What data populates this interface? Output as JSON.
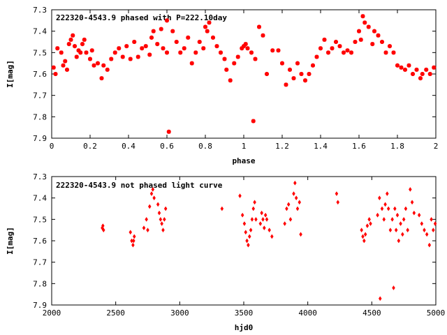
{
  "chart_data": [
    {
      "type": "scatter",
      "title": "222320-4543.9 phased with P=222.10day",
      "xlabel": "phase",
      "ylabel": "I[mag]",
      "xlim": [
        0,
        2
      ],
      "ylim": [
        7.9,
        7.3
      ],
      "y_inverted": true,
      "xticks": [
        0,
        0.2,
        0.4,
        0.6,
        0.8,
        1,
        1.2,
        1.4,
        1.6,
        1.8,
        2
      ],
      "xtick_labels": [
        "0",
        "0.2",
        "0.4",
        "0.6",
        "0.8",
        "1",
        "1.2",
        "1.4",
        "1.6",
        "1.8",
        "2"
      ],
      "yticks": [
        7.3,
        7.4,
        7.5,
        7.6,
        7.7,
        7.8,
        7.9
      ],
      "ytick_labels": [
        "7.3",
        "7.4",
        "7.5",
        "7.6",
        "7.7",
        "7.8",
        "7.9"
      ],
      "grid": false,
      "marker": "star",
      "color": "#ff0000",
      "series": [
        {
          "points": [
            [
              0.01,
              7.57
            ],
            [
              0.02,
              7.6
            ],
            [
              0.03,
              7.48
            ],
            [
              0.05,
              7.5
            ],
            [
              0.06,
              7.56
            ],
            [
              0.07,
              7.54
            ],
            [
              0.08,
              7.58
            ],
            [
              0.09,
              7.46
            ],
            [
              0.1,
              7.44
            ],
            [
              0.11,
              7.42
            ],
            [
              0.12,
              7.47
            ],
            [
              0.13,
              7.52
            ],
            [
              0.14,
              7.49
            ],
            [
              0.15,
              7.5
            ],
            [
              0.16,
              7.46
            ],
            [
              0.17,
              7.44
            ],
            [
              0.18,
              7.5
            ],
            [
              0.2,
              7.53
            ],
            [
              0.21,
              7.49
            ],
            [
              0.22,
              7.56
            ],
            [
              0.24,
              7.55
            ],
            [
              0.26,
              7.62
            ],
            [
              0.27,
              7.56
            ],
            [
              0.29,
              7.58
            ],
            [
              0.31,
              7.53
            ],
            [
              0.33,
              7.5
            ],
            [
              0.35,
              7.48
            ],
            [
              0.37,
              7.52
            ],
            [
              0.39,
              7.47
            ],
            [
              0.41,
              7.53
            ],
            [
              0.43,
              7.45
            ],
            [
              0.45,
              7.52
            ],
            [
              0.47,
              7.48
            ],
            [
              0.49,
              7.47
            ],
            [
              0.51,
              7.51
            ],
            [
              0.52,
              7.43
            ],
            [
              0.53,
              7.4
            ],
            [
              0.55,
              7.46
            ],
            [
              0.57,
              7.39
            ],
            [
              0.58,
              7.48
            ],
            [
              0.6,
              7.35
            ],
            [
              0.6,
              7.5
            ],
            [
              0.61,
              7.87
            ],
            [
              0.63,
              7.4
            ],
            [
              0.65,
              7.45
            ],
            [
              0.67,
              7.5
            ],
            [
              0.69,
              7.48
            ],
            [
              0.71,
              7.43
            ],
            [
              0.73,
              7.55
            ],
            [
              0.75,
              7.5
            ],
            [
              0.77,
              7.45
            ],
            [
              0.79,
              7.48
            ],
            [
              0.8,
              7.38
            ],
            [
              0.81,
              7.4
            ],
            [
              0.82,
              7.36
            ],
            [
              0.84,
              7.43
            ],
            [
              0.86,
              7.47
            ],
            [
              0.88,
              7.5
            ],
            [
              0.9,
              7.53
            ],
            [
              0.91,
              7.58
            ],
            [
              0.93,
              7.63
            ],
            [
              0.95,
              7.55
            ],
            [
              0.97,
              7.52
            ],
            [
              0.99,
              7.48
            ],
            [
              1.0,
              7.47
            ],
            [
              1.01,
              7.46
            ],
            [
              1.02,
              7.48
            ],
            [
              1.04,
              7.5
            ],
            [
              1.05,
              7.82
            ],
            [
              1.06,
              7.53
            ],
            [
              1.08,
              7.38
            ],
            [
              1.1,
              7.42
            ],
            [
              1.12,
              7.6
            ],
            [
              1.15,
              7.49
            ],
            [
              1.18,
              7.49
            ],
            [
              1.2,
              7.55
            ],
            [
              1.22,
              7.65
            ],
            [
              1.24,
              7.58
            ],
            [
              1.26,
              7.62
            ],
            [
              1.28,
              7.55
            ],
            [
              1.3,
              7.6
            ],
            [
              1.32,
              7.63
            ],
            [
              1.34,
              7.6
            ],
            [
              1.36,
              7.56
            ],
            [
              1.38,
              7.52
            ],
            [
              1.4,
              7.48
            ],
            [
              1.42,
              7.44
            ],
            [
              1.44,
              7.5
            ],
            [
              1.46,
              7.48
            ],
            [
              1.48,
              7.45
            ],
            [
              1.5,
              7.47
            ],
            [
              1.52,
              7.5
            ],
            [
              1.54,
              7.49
            ],
            [
              1.56,
              7.5
            ],
            [
              1.58,
              7.45
            ],
            [
              1.6,
              7.4
            ],
            [
              1.61,
              7.44
            ],
            [
              1.62,
              7.33
            ],
            [
              1.63,
              7.36
            ],
            [
              1.65,
              7.38
            ],
            [
              1.67,
              7.46
            ],
            [
              1.68,
              7.4
            ],
            [
              1.7,
              7.42
            ],
            [
              1.72,
              7.45
            ],
            [
              1.74,
              7.5
            ],
            [
              1.76,
              7.47
            ],
            [
              1.78,
              7.5
            ],
            [
              1.8,
              7.56
            ],
            [
              1.82,
              7.57
            ],
            [
              1.84,
              7.58
            ],
            [
              1.86,
              7.56
            ],
            [
              1.88,
              7.6
            ],
            [
              1.9,
              7.58
            ],
            [
              1.92,
              7.62
            ],
            [
              1.93,
              7.6
            ],
            [
              1.95,
              7.58
            ],
            [
              1.97,
              7.6
            ],
            [
              1.99,
              7.57
            ]
          ]
        }
      ]
    },
    {
      "type": "scatter",
      "title": "222320-4543.9 not phased light curve",
      "xlabel": "hjd0",
      "ylabel": "I[mag]",
      "xlim": [
        2000,
        5000
      ],
      "ylim": [
        7.9,
        7.3
      ],
      "y_inverted": true,
      "xticks": [
        2000,
        2500,
        3000,
        3500,
        4000,
        4500,
        5000
      ],
      "xtick_labels": [
        "2000",
        "2500",
        "3000",
        "3500",
        "4000",
        "4500",
        "5000"
      ],
      "yticks": [
        7.3,
        7.4,
        7.5,
        7.6,
        7.7,
        7.8,
        7.9
      ],
      "ytick_labels": [
        "7.3",
        "7.4",
        "7.5",
        "7.6",
        "7.7",
        "7.8",
        "7.9"
      ],
      "grid": false,
      "marker": "diamond",
      "color": "#ff0000",
      "series": [
        {
          "points": [
            [
              2395,
              7.54
            ],
            [
              2400,
              7.53
            ],
            [
              2405,
              7.55
            ],
            [
              2615,
              7.56
            ],
            [
              2625,
              7.6
            ],
            [
              2635,
              7.62
            ],
            [
              2640,
              7.6
            ],
            [
              2645,
              7.58
            ],
            [
              2720,
              7.54
            ],
            [
              2740,
              7.5
            ],
            [
              2750,
              7.55
            ],
            [
              2765,
              7.44
            ],
            [
              2780,
              7.38
            ],
            [
              2790,
              7.36
            ],
            [
              2800,
              7.4
            ],
            [
              2830,
              7.43
            ],
            [
              2840,
              7.47
            ],
            [
              2850,
              7.5
            ],
            [
              2860,
              7.52
            ],
            [
              2870,
              7.55
            ],
            [
              2880,
              7.5
            ],
            [
              2890,
              7.45
            ],
            [
              3330,
              7.45
            ],
            [
              3470,
              7.39
            ],
            [
              3490,
              7.48
            ],
            [
              3505,
              7.52
            ],
            [
              3515,
              7.56
            ],
            [
              3525,
              7.6
            ],
            [
              3535,
              7.62
            ],
            [
              3545,
              7.58
            ],
            [
              3555,
              7.55
            ],
            [
              3565,
              7.5
            ],
            [
              3575,
              7.45
            ],
            [
              3585,
              7.42
            ],
            [
              3595,
              7.5
            ],
            [
              3630,
              7.52
            ],
            [
              3640,
              7.47
            ],
            [
              3650,
              7.5
            ],
            [
              3660,
              7.54
            ],
            [
              3670,
              7.48
            ],
            [
              3680,
              7.5
            ],
            [
              3700,
              7.55
            ],
            [
              3720,
              7.58
            ],
            [
              3820,
              7.52
            ],
            [
              3835,
              7.45
            ],
            [
              3850,
              7.43
            ],
            [
              3865,
              7.5
            ],
            [
              3890,
              7.38
            ],
            [
              3900,
              7.33
            ],
            [
              3910,
              7.4
            ],
            [
              3920,
              7.45
            ],
            [
              3935,
              7.42
            ],
            [
              3945,
              7.57
            ],
            [
              4225,
              7.38
            ],
            [
              4235,
              7.42
            ],
            [
              4420,
              7.55
            ],
            [
              4430,
              7.58
            ],
            [
              4440,
              7.6
            ],
            [
              4450,
              7.57
            ],
            [
              4465,
              7.53
            ],
            [
              4480,
              7.5
            ],
            [
              4490,
              7.52
            ],
            [
              4545,
              7.48
            ],
            [
              4560,
              7.4
            ],
            [
              4565,
              7.87
            ],
            [
              4580,
              7.45
            ],
            [
              4595,
              7.5
            ],
            [
              4605,
              7.43
            ],
            [
              4620,
              7.38
            ],
            [
              4630,
              7.45
            ],
            [
              4645,
              7.55
            ],
            [
              4660,
              7.5
            ],
            [
              4670,
              7.82
            ],
            [
              4680,
              7.45
            ],
            [
              4690,
              7.55
            ],
            [
              4700,
              7.48
            ],
            [
              4710,
              7.6
            ],
            [
              4725,
              7.52
            ],
            [
              4740,
              7.57
            ],
            [
              4750,
              7.5
            ],
            [
              4765,
              7.45
            ],
            [
              4780,
              7.55
            ],
            [
              4800,
              7.36
            ],
            [
              4815,
              7.42
            ],
            [
              4830,
              7.47
            ],
            [
              4870,
              7.48
            ],
            [
              4890,
              7.52
            ],
            [
              4910,
              7.55
            ],
            [
              4930,
              7.57
            ],
            [
              4950,
              7.62
            ],
            [
              4965,
              7.5
            ],
            [
              4980,
              7.55
            ],
            [
              4995,
              7.52
            ]
          ]
        }
      ]
    }
  ]
}
